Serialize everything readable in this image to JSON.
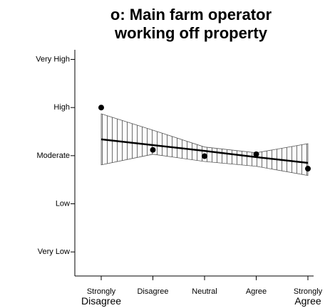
{
  "chart_data": {
    "type": "scatter",
    "title": [
      "o: Main farm operator",
      "working off property"
    ],
    "categories": [
      "Strongly Disagree",
      "Disagree",
      "Neutral",
      "Agree",
      "Strongly Agree"
    ],
    "values": [
      4.0,
      3.12,
      2.99,
      3.03,
      2.73
    ],
    "fit": [
      3.34,
      3.22,
      3.1,
      2.97,
      2.85
    ],
    "upper": [
      3.87,
      3.53,
      3.18,
      3.06,
      3.25
    ],
    "lower": [
      2.81,
      3.03,
      2.88,
      2.78,
      2.59
    ],
    "color": "#000000",
    "ylim": [
      0.5,
      5.2
    ],
    "yticks": [
      {
        "value": 1,
        "label": "Very Low"
      },
      {
        "value": 2,
        "label": "Low"
      },
      {
        "value": 3,
        "label": "Moderate"
      },
      {
        "value": 4,
        "label": "High"
      },
      {
        "value": 5,
        "label": "Very High"
      }
    ]
  }
}
